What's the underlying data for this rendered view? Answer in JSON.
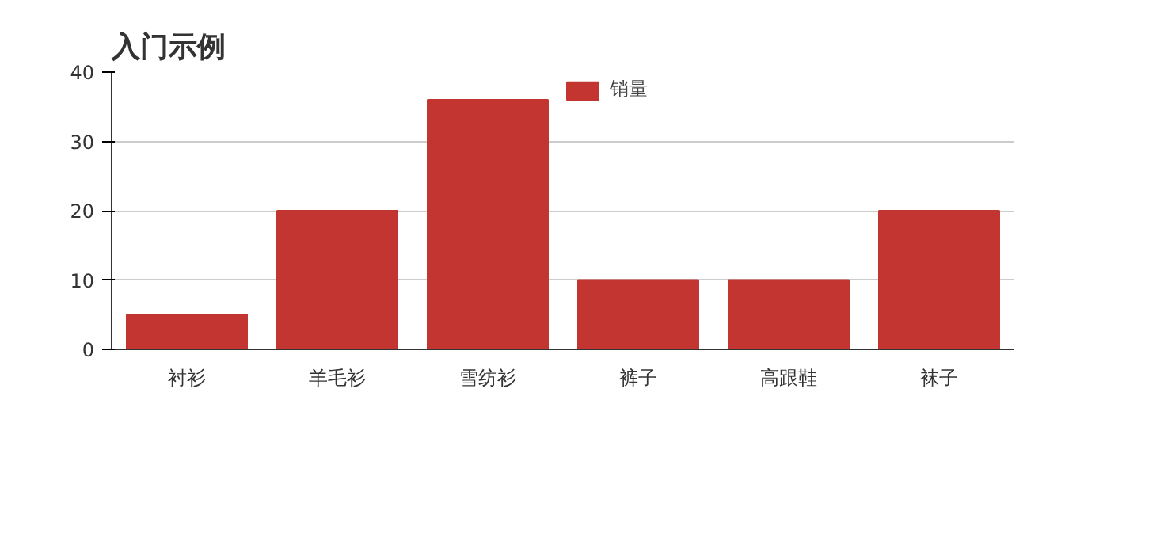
{
  "chart_data": {
    "type": "bar",
    "title": "入门示例",
    "categories": [
      "衬衫",
      "羊毛衫",
      "雪纺衫",
      "裤子",
      "高跟鞋",
      "袜子"
    ],
    "series": [
      {
        "name": "销量",
        "color": "#c23531",
        "values": [
          5,
          20,
          36,
          10,
          10,
          20
        ]
      }
    ],
    "ylim": [
      0,
      40
    ],
    "yticks": [
      0,
      10,
      20,
      30,
      40
    ],
    "grid": "y",
    "legend": "top"
  }
}
